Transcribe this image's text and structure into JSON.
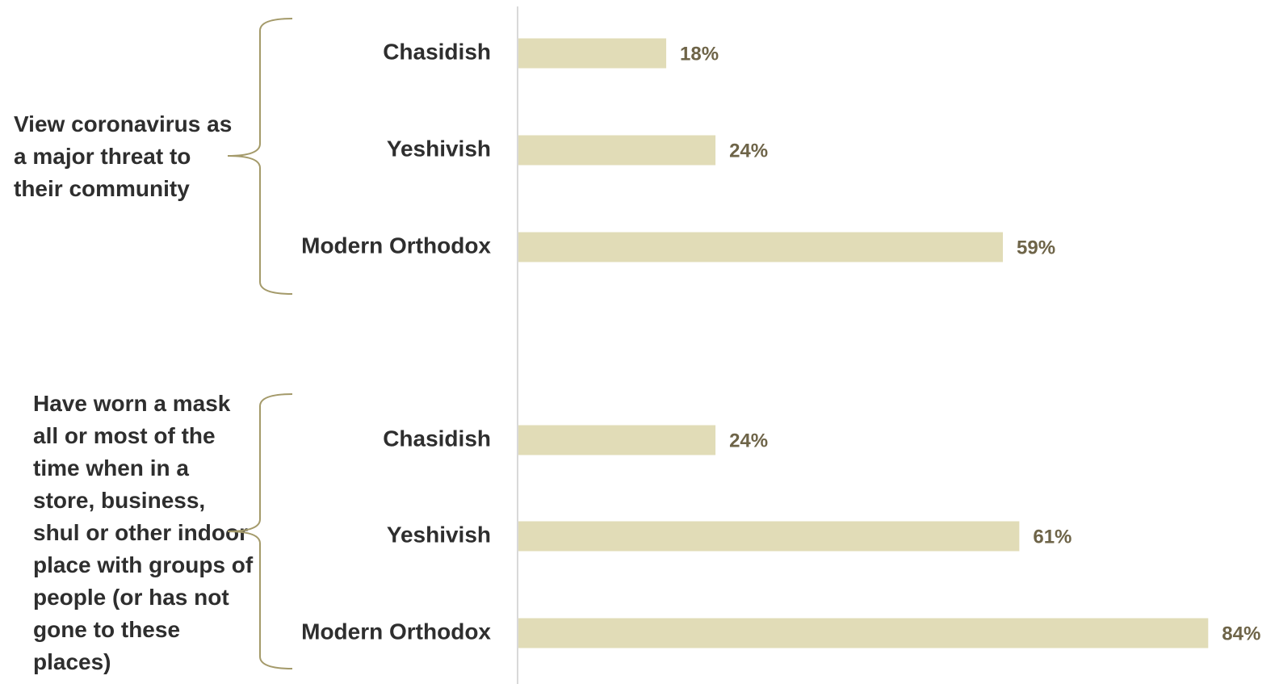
{
  "chart_data": [
    {
      "type": "bar",
      "title": "View coronavirus as a major threat to their community",
      "categories": [
        "Chasidish",
        "Yeshivish",
        "Modern Orthodox"
      ],
      "values": [
        18,
        24,
        59
      ],
      "value_labels": [
        "18%",
        "24%",
        "59%"
      ],
      "color": "#e1dcb7"
    },
    {
      "type": "bar",
      "title": "Have worn a mask all or most of the time when in a store, business, shul or other indoor place with groups of people (or has not gone to these places)",
      "categories": [
        "Chasidish",
        "Yeshivish",
        "Modern Orthodox"
      ],
      "values": [
        24,
        61,
        84
      ],
      "value_labels": [
        "24%",
        "61%",
        "84%"
      ],
      "color": "#e1dcb7"
    }
  ]
}
